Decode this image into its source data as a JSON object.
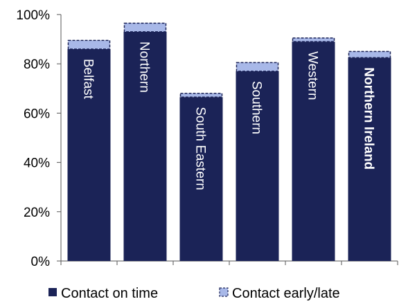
{
  "chart_data": {
    "type": "bar",
    "stacked": true,
    "categories": [
      "Belfast",
      "Northern",
      "South Eastern",
      "Southern",
      "Western",
      "Northern Ireland"
    ],
    "series": [
      {
        "name": "Contact on time",
        "values": [
          86,
          93,
          66.5,
          77,
          89,
          82.5
        ]
      },
      {
        "name": "Contact early/late",
        "values": [
          3.5,
          3.5,
          1.5,
          3.5,
          1.5,
          2.5
        ]
      }
    ],
    "ylim": [
      0,
      100
    ],
    "y_ticks": [
      "0%",
      "20%",
      "40%",
      "60%",
      "80%",
      "100%"
    ],
    "y_tick_values": [
      0,
      20,
      40,
      60,
      80,
      100
    ],
    "highlighted_category": "Northern Ireland",
    "colors": {
      "on_time": "#1b2357",
      "early_late": "#a8b8e8",
      "early_late_border": "#1b2357",
      "axis": "#555555"
    },
    "legend_position": "bottom",
    "grid": false
  }
}
